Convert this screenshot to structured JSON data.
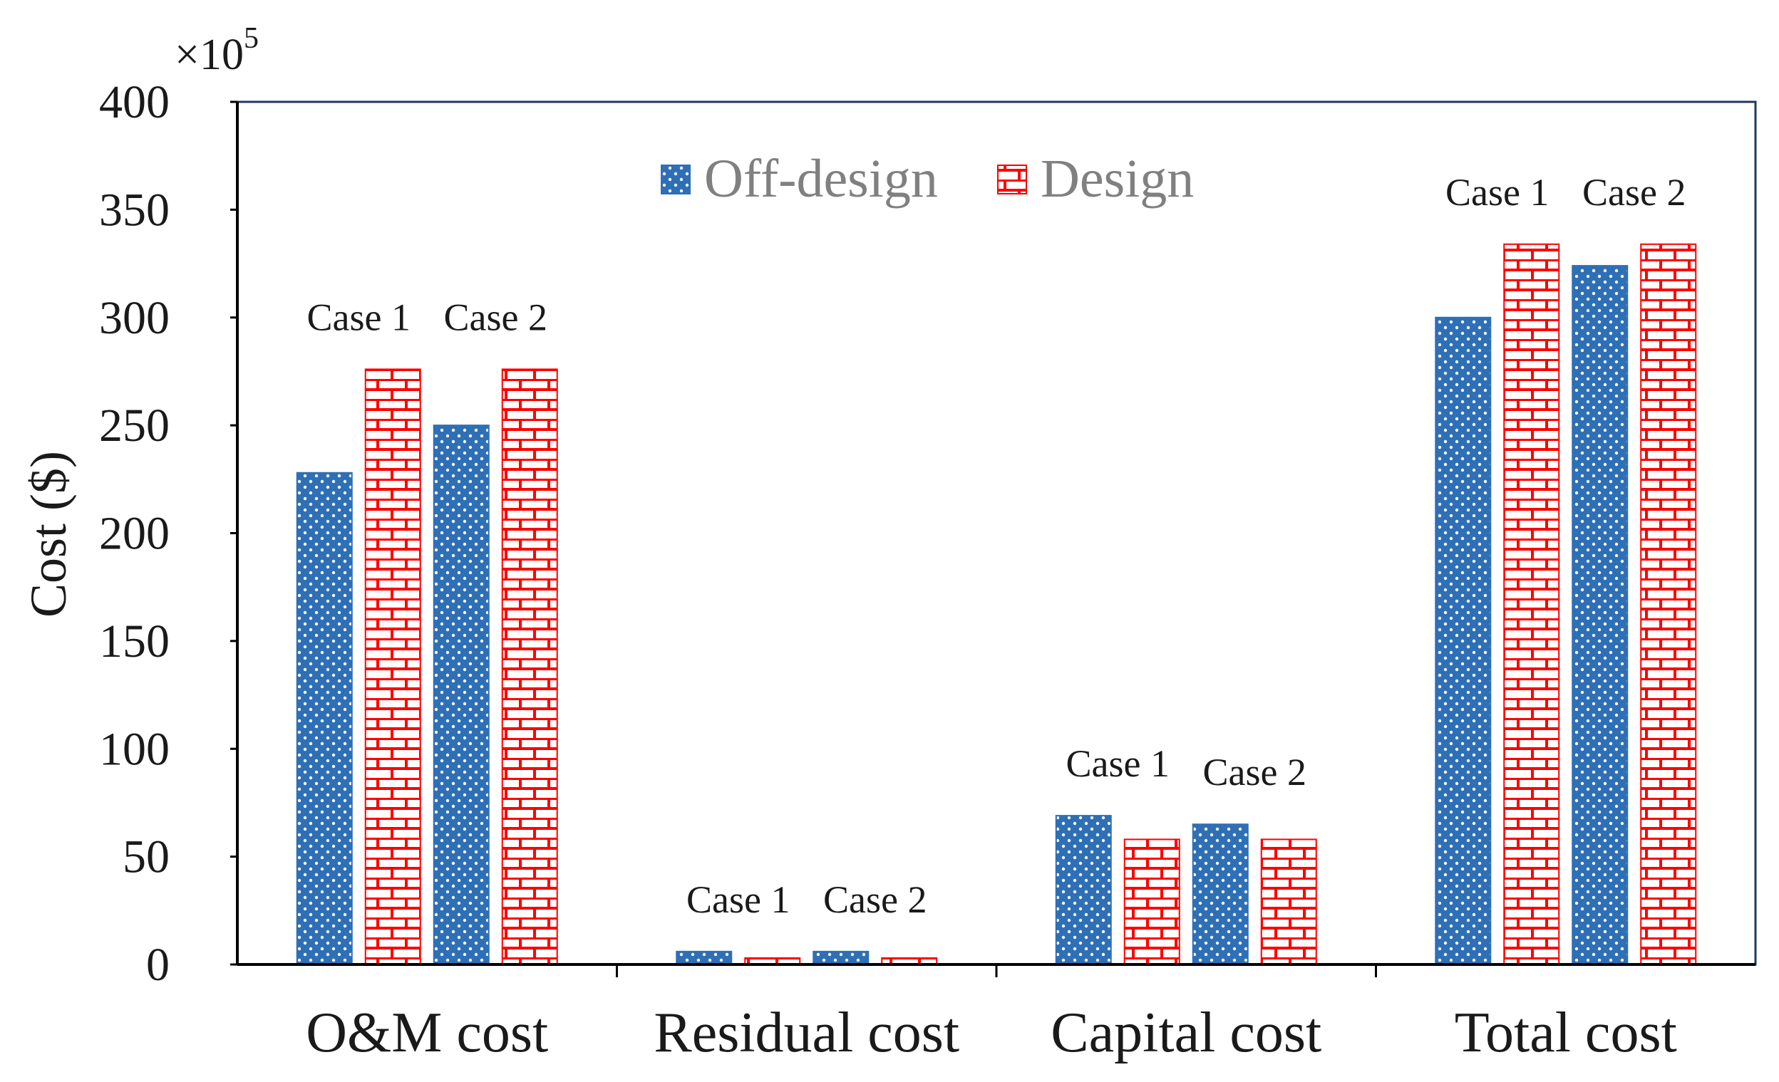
{
  "chart_data": {
    "type": "bar",
    "categories": [
      "O&M cost",
      "Residual cost",
      "Capital cost",
      "Total cost"
    ],
    "case_labels": [
      "Case 1",
      "Case 2"
    ],
    "series": [
      {
        "name": "Off-design",
        "case": "Case 1",
        "values": [
          228,
          6,
          69,
          300
        ],
        "color": "#2e6fb5",
        "pattern": "dots"
      },
      {
        "name": "Design",
        "case": "Case 1",
        "values": [
          276,
          3,
          58,
          334
        ],
        "color": "#ff0000",
        "pattern": "bricks"
      },
      {
        "name": "Off-design",
        "case": "Case 2",
        "values": [
          250,
          6,
          65,
          324
        ],
        "color": "#2e6fb5",
        "pattern": "dots"
      },
      {
        "name": "Design",
        "case": "Case 2",
        "values": [
          276,
          3,
          58,
          334
        ],
        "color": "#ff0000",
        "pattern": "bricks"
      }
    ],
    "legend": [
      {
        "name": "Off-design",
        "color": "#2e6fb5",
        "pattern": "dots"
      },
      {
        "name": "Design",
        "color": "#ff0000",
        "pattern": "bricks"
      }
    ],
    "ylabel": "Cost ($)",
    "y_multiplier": "×10",
    "y_multiplier_exp": "5",
    "ylim": [
      0,
      400
    ],
    "yticks": [
      0,
      50,
      100,
      150,
      200,
      250,
      300,
      350,
      400
    ],
    "xlabel": "",
    "title": "",
    "legend_position": "top-center",
    "grid": false
  }
}
